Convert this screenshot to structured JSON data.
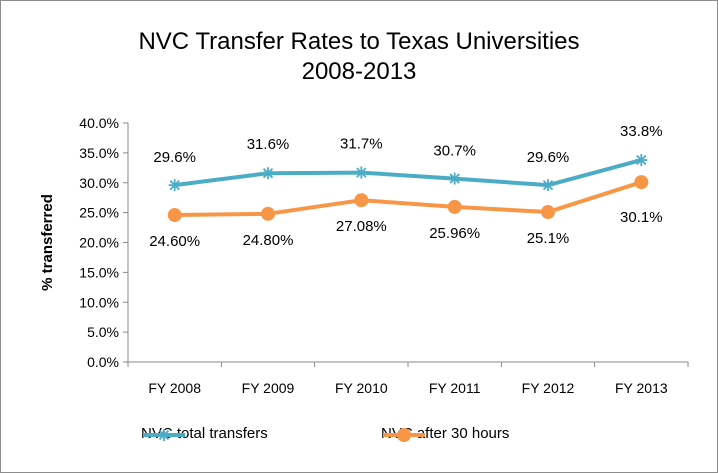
{
  "chart_data": {
    "type": "line",
    "title_line1": "NVC Transfer Rates to Texas Universities",
    "title_line2": "2008-2013",
    "ylabel": "% transferred",
    "xlabel": "",
    "categories": [
      "FY 2008",
      "FY 2009",
      "FY 2010",
      "FY 2011",
      "FY 2012",
      "FY 2013"
    ],
    "ylim": [
      0,
      40
    ],
    "yticks": [
      "0.0%",
      "5.0%",
      "10.0%",
      "15.0%",
      "20.0%",
      "25.0%",
      "30.0%",
      "35.0%",
      "40.0%"
    ],
    "grid": false,
    "legend_position": "bottom",
    "series": [
      {
        "name": "NVC total transfers",
        "color": "#4bacc6",
        "marker": "asterisk",
        "values": [
          29.6,
          31.6,
          31.7,
          30.7,
          29.6,
          33.8
        ],
        "labels": [
          "29.6%",
          "31.6%",
          "31.7%",
          "30.7%",
          "29.6%",
          "33.8%"
        ]
      },
      {
        "name": "NVC after 30 hours",
        "color": "#f79646",
        "marker": "circle",
        "values": [
          24.6,
          24.8,
          27.08,
          25.96,
          25.1,
          30.1
        ],
        "labels": [
          "24.60%",
          "24.80%",
          "27.08%",
          "25.96%",
          "25.1%",
          "30.1%"
        ]
      }
    ]
  }
}
